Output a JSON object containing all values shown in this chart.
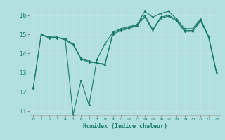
{
  "title": "",
  "xlabel": "Humidex (Indice chaleur)",
  "ylabel": "",
  "background_color": "#b2dfdf",
  "grid_color": "#c8e8e8",
  "line_color": "#1a7a6e",
  "xlim": [
    -0.5,
    23.5
  ],
  "ylim": [
    10.8,
    16.5
  ],
  "yticks": [
    11,
    12,
    13,
    14,
    15,
    16
  ],
  "xtick_labels": [
    "0",
    "1",
    "2",
    "3",
    "4",
    "5",
    "6",
    "7",
    "8",
    "9",
    "10",
    "11",
    "12",
    "13",
    "14",
    "15",
    "16",
    "17",
    "18",
    "19",
    "20",
    "21",
    "22",
    "23"
  ],
  "series1_x": [
    0,
    1,
    2,
    3,
    4,
    5,
    6,
    7,
    8,
    9,
    10,
    11,
    12,
    13,
    14,
    15,
    16,
    17,
    18,
    19,
    20,
    21,
    22,
    23
  ],
  "series1_y": [
    12.2,
    15.0,
    14.8,
    14.8,
    14.8,
    10.8,
    12.6,
    11.3,
    13.7,
    14.5,
    15.1,
    15.3,
    15.4,
    15.5,
    16.2,
    15.9,
    16.1,
    16.2,
    15.8,
    15.3,
    15.3,
    15.8,
    14.9,
    13.0
  ],
  "series2_x": [
    0,
    1,
    2,
    3,
    4,
    5,
    6,
    7,
    8,
    9,
    10,
    11,
    12,
    13,
    14,
    15,
    16,
    17,
    18,
    19,
    20,
    21,
    22,
    23
  ],
  "series2_y": [
    12.2,
    15.0,
    14.85,
    14.85,
    14.7,
    14.45,
    13.7,
    13.55,
    13.5,
    13.4,
    15.1,
    15.25,
    15.35,
    15.5,
    16.0,
    15.25,
    15.9,
    16.0,
    15.75,
    15.2,
    15.2,
    15.75,
    14.9,
    13.0
  ],
  "series3_x": [
    1,
    2,
    3,
    4,
    5,
    6,
    7,
    8,
    9,
    10,
    11,
    12,
    13,
    14,
    15,
    16,
    17,
    18,
    19,
    20,
    21,
    22,
    23
  ],
  "series3_y": [
    14.95,
    14.85,
    14.85,
    14.75,
    14.5,
    13.75,
    13.6,
    13.5,
    13.45,
    15.0,
    15.2,
    15.3,
    15.45,
    15.9,
    15.2,
    15.85,
    15.95,
    15.7,
    15.15,
    15.15,
    15.7,
    14.85,
    13.0
  ]
}
